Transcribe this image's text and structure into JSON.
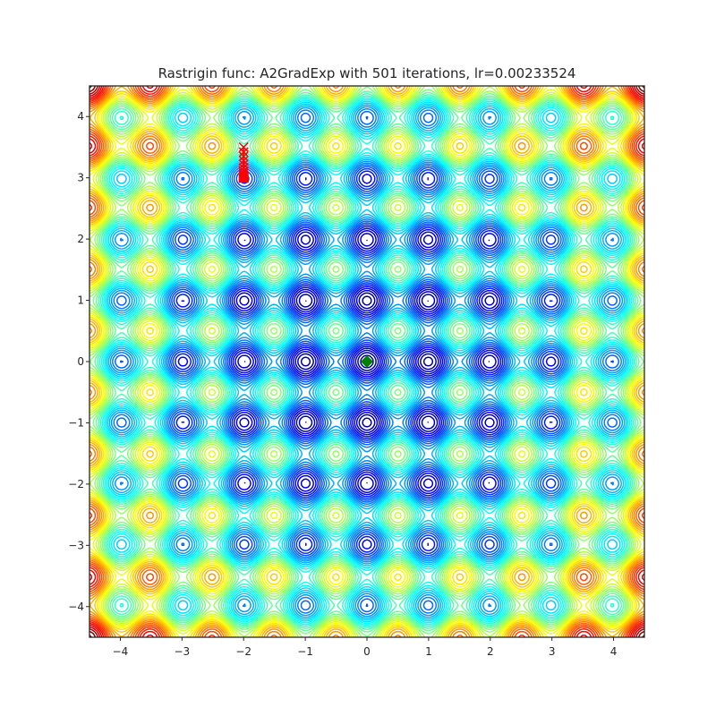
{
  "chart_data": {
    "type": "contour",
    "title": "Rastrigin func: A2GradExp with 501 iterations, lr=0.00233524",
    "xlabel": "",
    "ylabel": "",
    "xlim": [
      -4.5,
      4.5
    ],
    "ylim": [
      -4.5,
      4.5
    ],
    "x_ticks": [
      -4,
      -3,
      -2,
      -1,
      0,
      1,
      2,
      3,
      4
    ],
    "y_ticks": [
      -4,
      -3,
      -2,
      -1,
      0,
      1,
      2,
      3,
      4
    ],
    "x_tick_labels": [
      "−4",
      "−3",
      "−2",
      "−1",
      "0",
      "1",
      "2",
      "3",
      "4"
    ],
    "y_tick_labels": [
      "−4",
      "−3",
      "−2",
      "−1",
      "0",
      "1",
      "2",
      "3",
      "4"
    ],
    "grid": false,
    "colormap": "jet",
    "function": "rastrigin",
    "contour_levels": [
      2,
      4,
      6,
      8,
      10,
      12,
      14,
      16,
      18,
      20,
      22,
      24,
      26,
      28,
      30,
      32,
      34,
      36,
      38,
      40,
      42,
      44,
      46,
      48,
      50,
      52,
      54,
      56,
      58,
      60,
      62,
      64,
      66,
      68,
      70,
      72,
      74,
      76,
      78,
      80
    ],
    "level_range": [
      0,
      80
    ],
    "optimizer_path": {
      "marker": "x",
      "color": "#ff0000",
      "x": [
        -2.0,
        -2.0,
        -2.0,
        -2.0,
        -2.0,
        -2.0,
        -2.0,
        -2.0,
        -2.0,
        -2.0,
        -2.0
      ],
      "y": [
        3.5,
        3.42,
        3.35,
        3.28,
        3.22,
        3.16,
        3.11,
        3.07,
        3.04,
        3.02,
        3.0
      ]
    },
    "path_end": {
      "marker": "square",
      "color": "#ff0000",
      "x": -2.0,
      "y": 3.0
    },
    "global_minimum": {
      "marker": "diamond",
      "color": "#008000",
      "x": 0.0,
      "y": 0.0
    }
  }
}
